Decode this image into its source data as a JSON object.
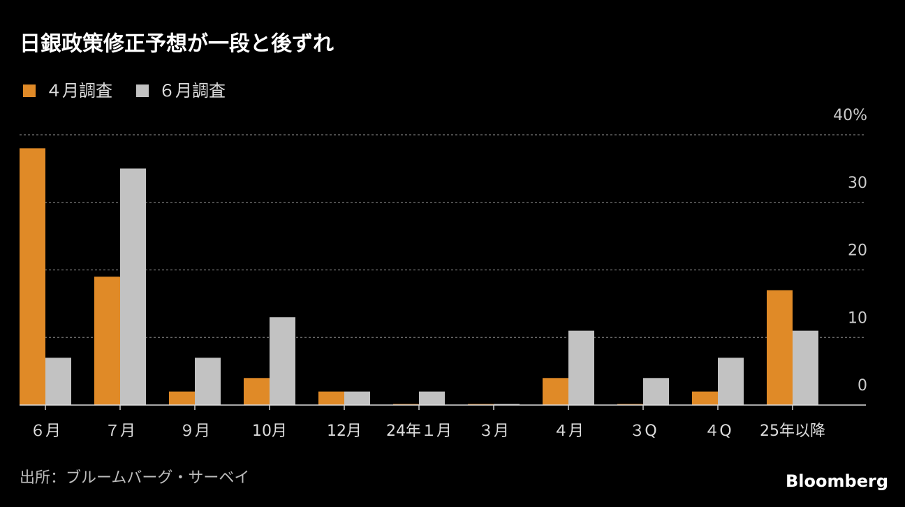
{
  "chart_data": {
    "type": "bar",
    "title": "日銀政策修正予想が一段と後ずれ",
    "categories": [
      "６月",
      "７月",
      "９月",
      "10月",
      "12月",
      "24年１月",
      "３月",
      "４月",
      "３Q",
      "４Q",
      "25年以降"
    ],
    "series": [
      {
        "name": "４月調査",
        "color": "#e08a27",
        "values": [
          38,
          19,
          2,
          4,
          2,
          0,
          0,
          4,
          0,
          2,
          17
        ]
      },
      {
        "name": "６月調査",
        "color": "#c2c2c2",
        "values": [
          7,
          35,
          7,
          13,
          2,
          2,
          0,
          11,
          4,
          7,
          11
        ]
      }
    ],
    "ylim": [
      0,
      40
    ],
    "yticks": [
      0,
      10,
      20,
      30,
      {
        "value": 40,
        "label": "40%"
      }
    ],
    "grid": true,
    "source": "出所：ブルームバーグ・サーベイ",
    "brand": "Bloomberg"
  }
}
